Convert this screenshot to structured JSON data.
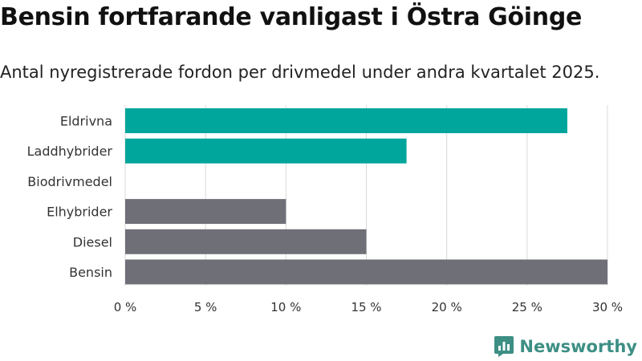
{
  "colors": {
    "teal": "#00a59c",
    "gray": "#6f6f78",
    "grid": "#d9d9d9",
    "brand": "#3d8f85"
  },
  "chart_data": {
    "type": "bar",
    "orientation": "horizontal",
    "title": "Bensin fortfarande vanligast i Östra Göinge",
    "subtitle": "Antal nyregistrerade fordon per drivmedel under andra kvartalet 2025.",
    "categories": [
      "Eldrivna",
      "Laddhybrider",
      "Biodrivmedel",
      "Elhybrider",
      "Diesel",
      "Bensin"
    ],
    "values": [
      27.5,
      17.5,
      0,
      10,
      15,
      30
    ],
    "bar_colors": [
      "teal",
      "teal",
      "teal",
      "gray",
      "gray",
      "gray"
    ],
    "xlim": [
      0,
      30
    ],
    "xticks": [
      0,
      5,
      10,
      15,
      20,
      25,
      30
    ],
    "tick_suffix": " %",
    "grid": "vertical",
    "legend": "none"
  },
  "brand": {
    "name": "Newsworthy",
    "icon": "newsworthy-logo-icon"
  }
}
